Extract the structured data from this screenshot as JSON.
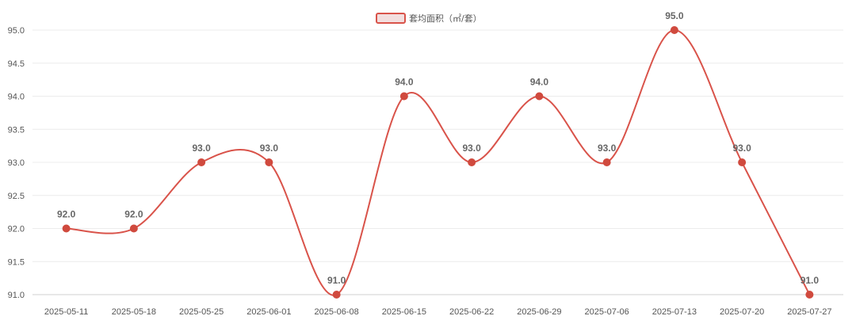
{
  "chart_data": {
    "type": "line",
    "categories": [
      "2025-05-11",
      "2025-05-18",
      "2025-05-25",
      "2025-06-01",
      "2025-06-08",
      "2025-06-15",
      "2025-06-22",
      "2025-06-29",
      "2025-07-06",
      "2025-07-13",
      "2025-07-20",
      "2025-07-27"
    ],
    "series": [
      {
        "name": "套均面积（㎡/套）",
        "values": [
          92.0,
          92.0,
          93.0,
          93.0,
          91.0,
          94.0,
          93.0,
          94.0,
          93.0,
          95.0,
          93.0,
          91.0
        ],
        "labels": [
          "92.0",
          "92.0",
          "93.0",
          "93.0",
          "91.0",
          "94.0",
          "93.0",
          "94.0",
          "93.0",
          "95.0",
          "93.0",
          "91.0"
        ]
      }
    ],
    "ylim": [
      91.0,
      95.0
    ],
    "yticks": [
      "91.0",
      "91.5",
      "92.0",
      "92.5",
      "93.0",
      "93.5",
      "94.0",
      "94.5",
      "95.0"
    ],
    "title": "",
    "xlabel": "",
    "ylabel": "",
    "grid": true,
    "legend_position": "top-center",
    "line_color": "#d9534a",
    "point_color": "#d04a3e",
    "legend_fill": "#f2dede",
    "curve": "smooth"
  }
}
